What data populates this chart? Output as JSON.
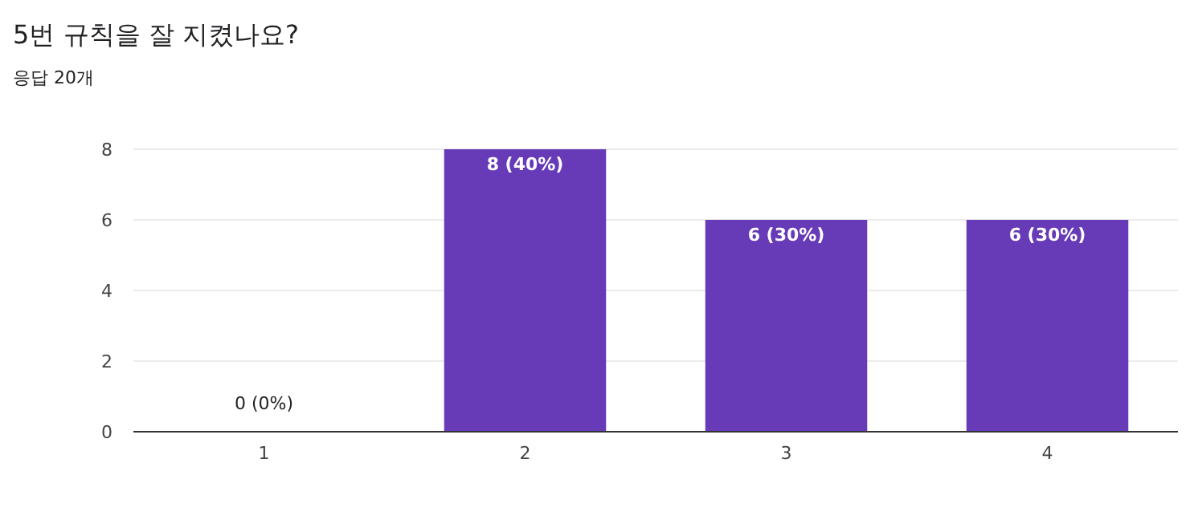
{
  "chart_data": {
    "type": "bar",
    "title": "5번 규칙을 잘 지켰나요?",
    "subtitle": "응답 20개",
    "categories": [
      "1",
      "2",
      "3",
      "4"
    ],
    "values": [
      0,
      8,
      6,
      6
    ],
    "value_labels": [
      "0 (0%)",
      "8 (40%)",
      "6 (30%)",
      "6 (30%)"
    ],
    "color": "#673ab7",
    "ylim": [
      0,
      8
    ],
    "yticks": [
      0,
      2,
      4,
      6,
      8
    ],
    "grid": "y"
  }
}
